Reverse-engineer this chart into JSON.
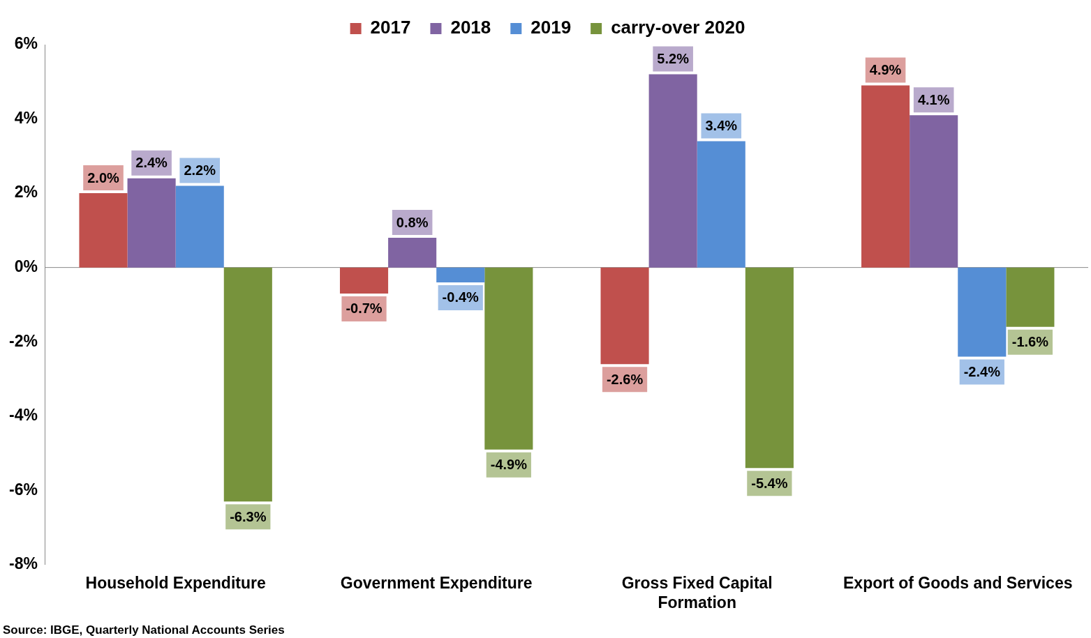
{
  "chart_data": {
    "type": "bar",
    "categories": [
      "Household Expenditure",
      "Government Expenditure",
      "Gross Fixed Capital Formation",
      "Export of Goods and Services"
    ],
    "series": [
      {
        "name": "2017",
        "color": "#c0504d",
        "values": [
          2.0,
          -0.7,
          -2.6,
          4.9
        ]
      },
      {
        "name": "2018",
        "color": "#8064a2",
        "values": [
          2.4,
          0.8,
          5.2,
          4.1
        ]
      },
      {
        "name": "2019",
        "color": "#558ed5",
        "values": [
          2.2,
          -0.4,
          3.4,
          -2.4
        ]
      },
      {
        "name": "carry-over 2020",
        "color": "#77933c",
        "values": [
          -6.3,
          -4.9,
          -5.4,
          -1.6
        ]
      }
    ],
    "value_labels": [
      [
        "2.0%",
        "-0.7%",
        "-2.6%",
        "4.9%"
      ],
      [
        "2.4%",
        "0.8%",
        "5.2%",
        "4.1%"
      ],
      [
        "2.2%",
        "-0.4%",
        "3.4%",
        "-2.4%"
      ],
      [
        "-6.3%",
        "-4.9%",
        "-5.4%",
        "-1.6%"
      ]
    ],
    "ylim": [
      -8,
      6
    ],
    "yticks": [
      {
        "value": -8,
        "label": "-8%"
      },
      {
        "value": -6,
        "label": "-6%"
      },
      {
        "value": -4,
        "label": "-4%"
      },
      {
        "value": -2,
        "label": "-2%"
      },
      {
        "value": 0,
        "label": "0%"
      },
      {
        "value": 2,
        "label": "2%"
      },
      {
        "value": 4,
        "label": "4%"
      },
      {
        "value": 6,
        "label": "6%"
      }
    ],
    "grid": false,
    "legend": "top",
    "ref_lines": [
      {
        "axis": "y",
        "value": 0,
        "color": "#888888"
      }
    ],
    "annotations": [
      "Source: IBGE, Quarterly National Accounts Series"
    ]
  }
}
